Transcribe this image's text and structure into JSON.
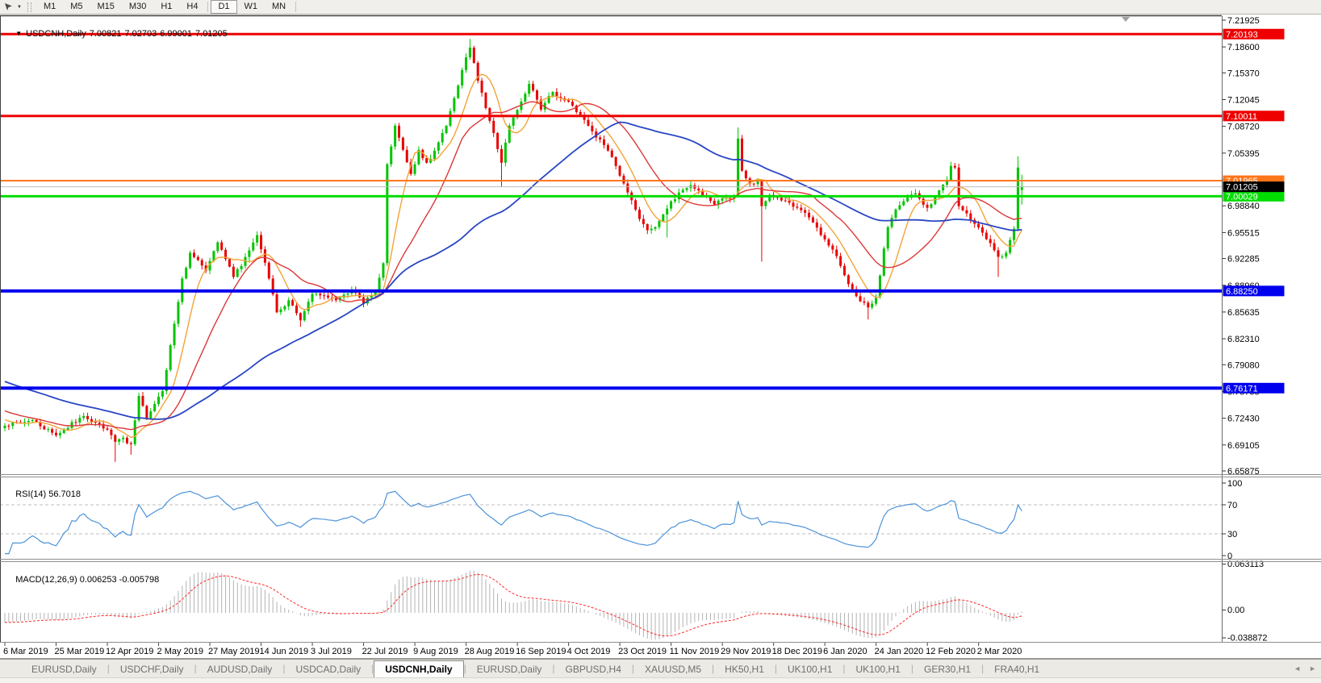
{
  "toolbar": {
    "timeframes": [
      "M1",
      "M5",
      "M15",
      "M30",
      "H1",
      "H4",
      "D1",
      "W1",
      "MN"
    ],
    "active_timeframe": "D1"
  },
  "tabs": {
    "items": [
      "EURUSD,Daily",
      "USDCHF,Daily",
      "AUDUSD,Daily",
      "USDCAD,Daily",
      "USDCNH,Daily",
      "EURUSD,Daily",
      "GBPUSD,H4",
      "XAUUSD,M5",
      "HK50,H1",
      "UK100,H1",
      "UK100,H1",
      "GER30,H1",
      "FRA40,H1"
    ],
    "active_index": 4
  },
  "chart_data": {
    "type": "candlestick",
    "title": "USDCNH,Daily",
    "symbol": "USDCNH",
    "timeframe": "Daily",
    "ohlc": {
      "open": "7.00821",
      "high": "7.02703",
      "low": "6.99001",
      "close": "7.01205"
    },
    "x_labels": [
      "6 Mar 2019",
      "25 Mar 2019",
      "12 Apr 2019",
      "2 May 2019",
      "27 May 2019",
      "14 Jun 2019",
      "3 Jul 2019",
      "22 Jul 2019",
      "9 Aug 2019",
      "28 Aug 2019",
      "16 Sep 2019",
      "4 Oct 2019",
      "23 Oct 2019",
      "11 Nov 2019",
      "29 Nov 2019",
      "18 Dec 2019",
      "6 Jan 2020",
      "24 Jan 2020",
      "12 Feb 2020",
      "2 Mar 2020"
    ],
    "price_axis_ticks": [
      "7.21925",
      "7.18600",
      "7.15370",
      "7.12045",
      "7.08720",
      "7.05395",
      "7.02070",
      "6.98840",
      "6.95515",
      "6.92285",
      "6.88960",
      "6.85635",
      "6.82310",
      "6.79080",
      "6.75755",
      "6.72430",
      "6.69105",
      "6.65875"
    ],
    "horizontal_lines": [
      {
        "price": 7.20193,
        "label": "7.20193",
        "color": "#EE0000",
        "thickness": 3
      },
      {
        "price": 7.10011,
        "label": "7.10011",
        "color": "#EE0000",
        "thickness": 3
      },
      {
        "price": 7.01965,
        "label": "7.01965",
        "color": "#FF7519",
        "thickness": 2
      },
      {
        "price": 7.00029,
        "label": "7.00029",
        "color": "#00DD00",
        "thickness": 3
      },
      {
        "price": 6.8825,
        "label": "6.88250",
        "color": "#0000EE",
        "thickness": 4
      },
      {
        "price": 6.76171,
        "label": "6.76171",
        "color": "#0000EE",
        "thickness": 4
      }
    ],
    "bid": {
      "price": 7.01205,
      "label": "7.01205",
      "line_color": "#BDBDBD",
      "box_color": "#000000"
    },
    "candles": {
      "count": 259,
      "seed": 7,
      "up_color": "#00C400",
      "down_color": "#E80000",
      "last_ohlc": {
        "open": 7.00821,
        "high": 7.02703,
        "low": 6.99001,
        "close": 7.01205
      },
      "close_waypoints": [
        [
          0,
          6.715
        ],
        [
          7,
          6.722
        ],
        [
          13,
          6.703
        ],
        [
          20,
          6.727
        ],
        [
          26,
          6.71
        ],
        [
          28,
          6.695
        ],
        [
          30,
          6.7
        ],
        [
          32,
          6.692
        ],
        [
          34,
          6.752
        ],
        [
          36,
          6.724
        ],
        [
          38,
          6.742
        ],
        [
          40,
          6.758
        ],
        [
          42,
          6.815
        ],
        [
          45,
          6.898
        ],
        [
          47,
          6.93
        ],
        [
          51,
          6.908
        ],
        [
          54,
          6.943
        ],
        [
          58,
          6.9
        ],
        [
          62,
          6.933
        ],
        [
          64,
          6.952
        ],
        [
          67,
          6.898
        ],
        [
          69,
          6.856
        ],
        [
          72,
          6.871
        ],
        [
          75,
          6.846
        ],
        [
          78,
          6.879
        ],
        [
          84,
          6.871
        ],
        [
          88,
          6.884
        ],
        [
          91,
          6.867
        ],
        [
          94,
          6.881
        ],
        [
          96,
          6.917
        ],
        [
          97,
          7.04
        ],
        [
          99,
          7.088
        ],
        [
          101,
          7.058
        ],
        [
          103,
          7.028
        ],
        [
          105,
          7.058
        ],
        [
          107,
          7.042
        ],
        [
          109,
          7.057
        ],
        [
          112,
          7.088
        ],
        [
          115,
          7.138
        ],
        [
          117,
          7.173
        ],
        [
          118,
          7.185
        ],
        [
          120,
          7.144
        ],
        [
          122,
          7.11
        ],
        [
          124,
          7.079
        ],
        [
          126,
          7.042
        ],
        [
          128,
          7.088
        ],
        [
          131,
          7.118
        ],
        [
          133,
          7.14
        ],
        [
          136,
          7.108
        ],
        [
          139,
          7.13
        ],
        [
          141,
          7.122
        ],
        [
          144,
          7.113
        ],
        [
          148,
          7.088
        ],
        [
          152,
          7.064
        ],
        [
          155,
          7.038
        ],
        [
          158,
          7.005
        ],
        [
          161,
          6.972
        ],
        [
          163,
          6.958
        ],
        [
          165,
          6.962
        ],
        [
          168,
          6.985
        ],
        [
          171,
          7.005
        ],
        [
          174,
          7.014
        ],
        [
          177,
          7.001
        ],
        [
          180,
          6.99
        ],
        [
          183,
          6.998
        ],
        [
          185,
          7.0
        ],
        [
          186,
          7.072
        ],
        [
          187,
          7.032
        ],
        [
          189,
          7.016
        ],
        [
          191,
          7.02
        ],
        [
          192,
          6.988
        ],
        [
          194,
          7.002
        ],
        [
          198,
          6.995
        ],
        [
          201,
          6.986
        ],
        [
          204,
          6.974
        ],
        [
          207,
          6.952
        ],
        [
          210,
          6.934
        ],
        [
          213,
          6.902
        ],
        [
          216,
          6.876
        ],
        [
          219,
          6.862
        ],
        [
          221,
          6.875
        ],
        [
          224,
          6.962
        ],
        [
          226,
          6.984
        ],
        [
          228,
          6.994
        ],
        [
          231,
          7.004
        ],
        [
          234,
          6.986
        ],
        [
          236,
          6.999
        ],
        [
          239,
          7.02
        ],
        [
          240,
          7.038
        ],
        [
          241,
          7.036
        ],
        [
          242,
          6.988
        ],
        [
          244,
          6.979
        ],
        [
          246,
          6.966
        ],
        [
          248,
          6.955
        ],
        [
          250,
          6.942
        ],
        [
          252,
          6.925
        ],
        [
          254,
          6.93
        ],
        [
          256,
          6.96
        ],
        [
          257,
          7.036
        ],
        [
          258,
          7.012
        ]
      ],
      "forced_wicks": [
        {
          "i": 28,
          "low": 6.67
        },
        {
          "i": 32,
          "low": 6.679
        },
        {
          "i": 34,
          "high": 6.756
        },
        {
          "i": 75,
          "low": 6.838
        },
        {
          "i": 118,
          "high": 7.196
        },
        {
          "i": 126,
          "low": 7.012
        },
        {
          "i": 168,
          "low": 6.949
        },
        {
          "i": 186,
          "high": 7.086
        },
        {
          "i": 192,
          "low": 6.919
        },
        {
          "i": 219,
          "low": 6.847
        },
        {
          "i": 252,
          "low": 6.9
        },
        {
          "i": 257,
          "high": 7.05
        }
      ]
    },
    "moving_averages": [
      {
        "period": 8,
        "color": "#F2A437",
        "name": "ma-fast"
      },
      {
        "period": 20,
        "color": "#DC3838",
        "name": "ma-mid"
      },
      {
        "period": 60,
        "color": "#2946C4",
        "name": "ma-slow"
      }
    ],
    "rsi": {
      "label": "RSI(14)",
      "value_label": "56.7018",
      "period": 14,
      "scale_labels": [
        "100",
        "70",
        "30",
        "0"
      ],
      "dashed_levels": [
        70,
        30
      ],
      "line_color": "#4C93D9"
    },
    "macd": {
      "label": "MACD(12,26,9)",
      "value_label": "0.006253 -0.005798",
      "fast": 12,
      "slow": 26,
      "signal": 9,
      "scale_labels": [
        "0.063113",
        "0.00",
        "-0.038872"
      ],
      "histogram_color": "#B3B3B3",
      "signal_color": "#FF2A2A"
    }
  }
}
